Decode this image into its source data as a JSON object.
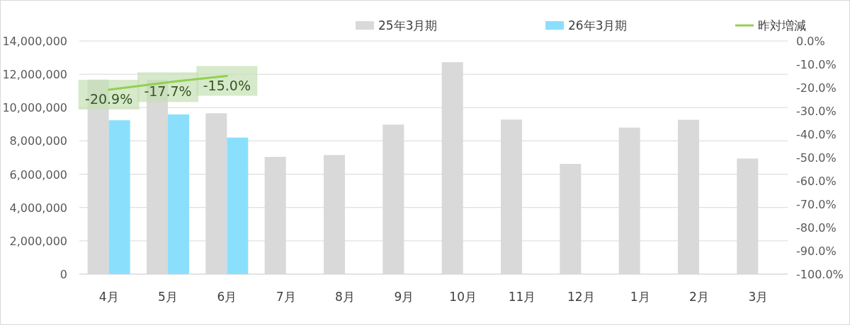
{
  "chart_data": {
    "type": "bar",
    "categories": [
      "4月",
      "5月",
      "6月",
      "7月",
      "8月",
      "9月",
      "10月",
      "11月",
      "12月",
      "1月",
      "2月",
      "3月"
    ],
    "series": [
      {
        "name": "25年3月期",
        "color": "#d9d9d9",
        "values": [
          11680000,
          11660000,
          9660000,
          7040000,
          7150000,
          8980000,
          12730000,
          9280000,
          6620000,
          8800000,
          9270000,
          6940000
        ]
      },
      {
        "name": "26年3月期",
        "color": "#8ae0fc",
        "values": [
          9240000,
          9590000,
          8200000,
          null,
          null,
          null,
          null,
          null,
          null,
          null,
          null,
          null
        ]
      },
      {
        "name": "昨対増減",
        "type": "line",
        "axis": "y2",
        "color": "#92d050",
        "values": [
          -20.9,
          -17.7,
          -15.0,
          null,
          null,
          null,
          null,
          null,
          null,
          null,
          null,
          null
        ],
        "value_labels": [
          "-20.9%",
          "-17.7%",
          "-15.0%",
          null,
          null,
          null,
          null,
          null,
          null,
          null,
          null,
          null
        ]
      }
    ],
    "ylim": [
      0,
      14000000
    ],
    "yticks": [
      {
        "value": 0,
        "label": "0"
      },
      {
        "value": 2000000,
        "label": "2,000,000"
      },
      {
        "value": 4000000,
        "label": "4,000,000"
      },
      {
        "value": 6000000,
        "label": "6,000,000"
      },
      {
        "value": 8000000,
        "label": "8,000,000"
      },
      {
        "value": 10000000,
        "label": "10,000,000"
      },
      {
        "value": 12000000,
        "label": "12,000,000"
      },
      {
        "value": 14000000,
        "label": "14,000,000"
      }
    ],
    "y2lim": [
      -100,
      0
    ],
    "y2ticks": [
      {
        "value": 0,
        "label": "0.0%"
      },
      {
        "value": -10,
        "label": "-10.0%"
      },
      {
        "value": -20,
        "label": "-20.0%"
      },
      {
        "value": -30,
        "label": "-30.0%"
      },
      {
        "value": -40,
        "label": "-40.0%"
      },
      {
        "value": -50,
        "label": "-50.0%"
      },
      {
        "value": -60,
        "label": "-60.0%"
      },
      {
        "value": -70,
        "label": "-70.0%"
      },
      {
        "value": -80,
        "label": "-80.0%"
      },
      {
        "value": -90,
        "label": "-90.0%"
      },
      {
        "value": -100,
        "label": "-100.0%"
      }
    ],
    "grid": "y",
    "legend": "top right"
  }
}
